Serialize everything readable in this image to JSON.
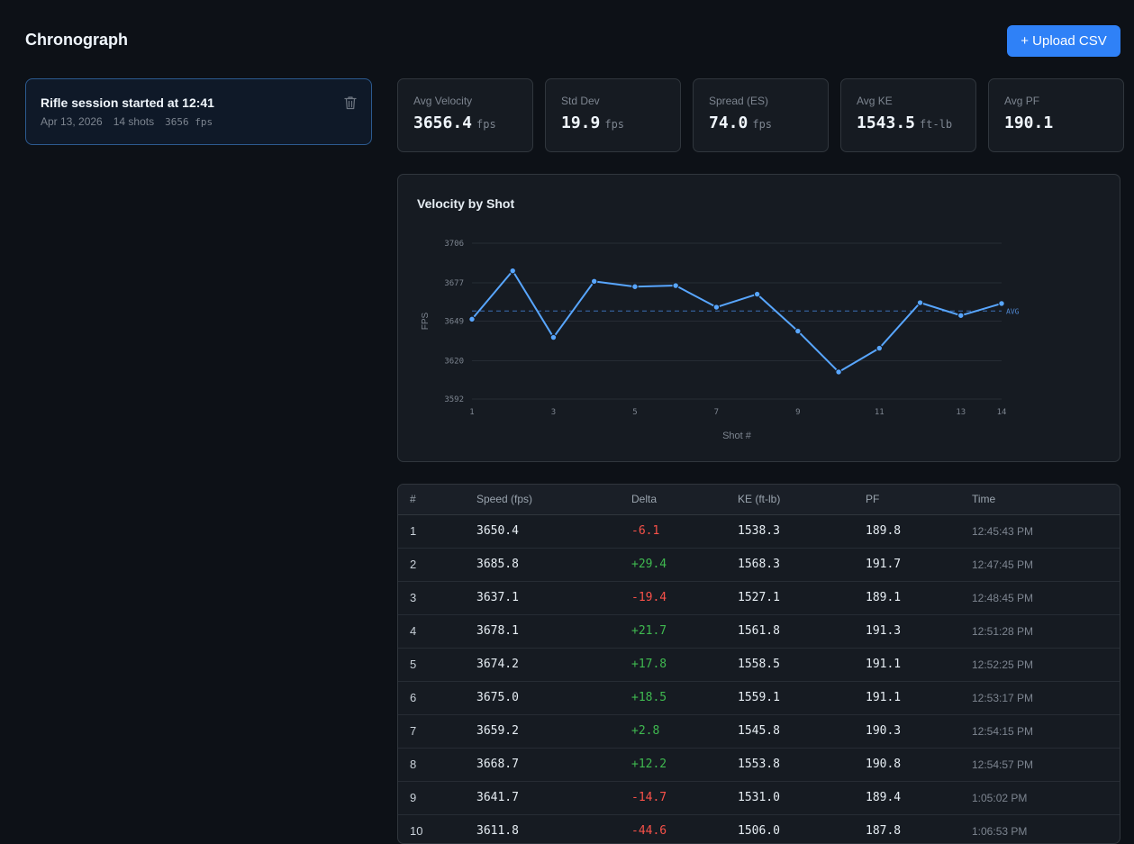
{
  "app": {
    "title": "Chronograph",
    "upload_label": "+ Upload CSV"
  },
  "session": {
    "title": "Rifle session started at 12:41",
    "date": "Apr 13, 2026",
    "shots": "14 shots",
    "fps": "3656 fps",
    "icon": "trash-icon"
  },
  "stats": [
    {
      "label": "Avg Velocity",
      "value": "3656.4",
      "unit": "fps"
    },
    {
      "label": "Std Dev",
      "value": "19.9",
      "unit": "fps"
    },
    {
      "label": "Spread (ES)",
      "value": "74.0",
      "unit": "fps"
    },
    {
      "label": "Avg KE",
      "value": "1543.5",
      "unit": "ft-lb"
    },
    {
      "label": "Avg PF",
      "value": "190.1",
      "unit": ""
    }
  ],
  "chart_data": {
    "type": "line",
    "title": "Velocity by Shot",
    "xlabel": "Shot #",
    "ylabel": "FPS",
    "x": [
      1,
      2,
      3,
      4,
      5,
      6,
      7,
      8,
      9,
      10,
      11,
      12,
      13,
      14
    ],
    "y_ticks": [
      "3706",
      "3677",
      "3649",
      "3620",
      "3592"
    ],
    "y_tick_values": [
      3706,
      3677,
      3649,
      3620,
      3592
    ],
    "x_tick_labels": [
      "1",
      "3",
      "5",
      "7",
      "9",
      "11",
      "13",
      "14"
    ],
    "x_tick_values": [
      1,
      3,
      5,
      7,
      9,
      11,
      13,
      14
    ],
    "ylim": [
      3592,
      3706
    ],
    "series": [
      {
        "values": [
          3650.4,
          3685.8,
          3637.1,
          3678.1,
          3674.2,
          3675.0,
          3659.2,
          3668.7,
          3641.7,
          3611.8,
          3629.2,
          3662.5,
          3653.1,
          3661.9
        ]
      }
    ],
    "avg": 3656.4,
    "avg_label": "AVG",
    "grid": true,
    "color": "#58a6ff"
  },
  "table": {
    "headers": [
      "#",
      "Speed (fps)",
      "Delta",
      "KE (ft-lb)",
      "PF",
      "Time"
    ],
    "rows": [
      [
        "1",
        "3650.4",
        "-6.1",
        "1538.3",
        "189.8",
        "12:45:43 PM"
      ],
      [
        "2",
        "3685.8",
        "+29.4",
        "1568.3",
        "191.7",
        "12:47:45 PM"
      ],
      [
        "3",
        "3637.1",
        "-19.4",
        "1527.1",
        "189.1",
        "12:48:45 PM"
      ],
      [
        "4",
        "3678.1",
        "+21.7",
        "1561.8",
        "191.3",
        "12:51:28 PM"
      ],
      [
        "5",
        "3674.2",
        "+17.8",
        "1558.5",
        "191.1",
        "12:52:25 PM"
      ],
      [
        "6",
        "3675.0",
        "+18.5",
        "1559.1",
        "191.1",
        "12:53:17 PM"
      ],
      [
        "7",
        "3659.2",
        "+2.8",
        "1545.8",
        "190.3",
        "12:54:15 PM"
      ],
      [
        "8",
        "3668.7",
        "+12.2",
        "1553.8",
        "190.8",
        "12:54:57 PM"
      ],
      [
        "9",
        "3641.7",
        "-14.7",
        "1531.0",
        "189.4",
        "1:05:02 PM"
      ],
      [
        "10",
        "3611.8",
        "-44.6",
        "1506.0",
        "187.8",
        "1:06:53 PM"
      ]
    ]
  }
}
